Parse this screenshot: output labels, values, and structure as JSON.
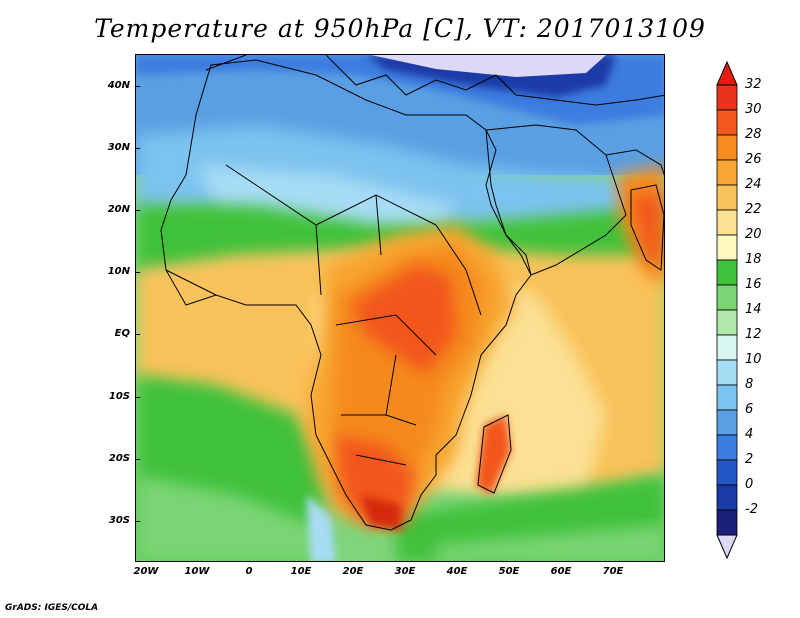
{
  "title": "Temperature at 950hPa [C], VT: 2017013109",
  "credit": "GrADS: IGES/COLA",
  "map": {
    "lat_labels": [
      "40N",
      "30N",
      "20N",
      "10N",
      "EQ",
      "10S",
      "20S",
      "30S"
    ],
    "lon_labels": [
      "20W",
      "10W",
      "0",
      "10E",
      "20E",
      "30E",
      "40E",
      "50E",
      "60E",
      "70E"
    ]
  },
  "colorbar": {
    "levels": [
      "32",
      "30",
      "28",
      "26",
      "24",
      "22",
      "20",
      "18",
      "16",
      "14",
      "12",
      "10",
      "8",
      "6",
      "4",
      "2",
      "0",
      "-2"
    ],
    "colors": [
      "#e8341a",
      "#f2571e",
      "#f58a1e",
      "#f7a633",
      "#f9c25a",
      "#fbe194",
      "#fdf8c0",
      "#3fc13a",
      "#7ad574",
      "#afe8aa",
      "#d9f6f1",
      "#a7dcf5",
      "#7cc3ef",
      "#5a9fe3",
      "#3e7ce0",
      "#2357c8",
      "#1a3aa6",
      "#1c1f7a"
    ],
    "max_color": "#e31e10",
    "min_color": "#dcd8f6"
  }
}
